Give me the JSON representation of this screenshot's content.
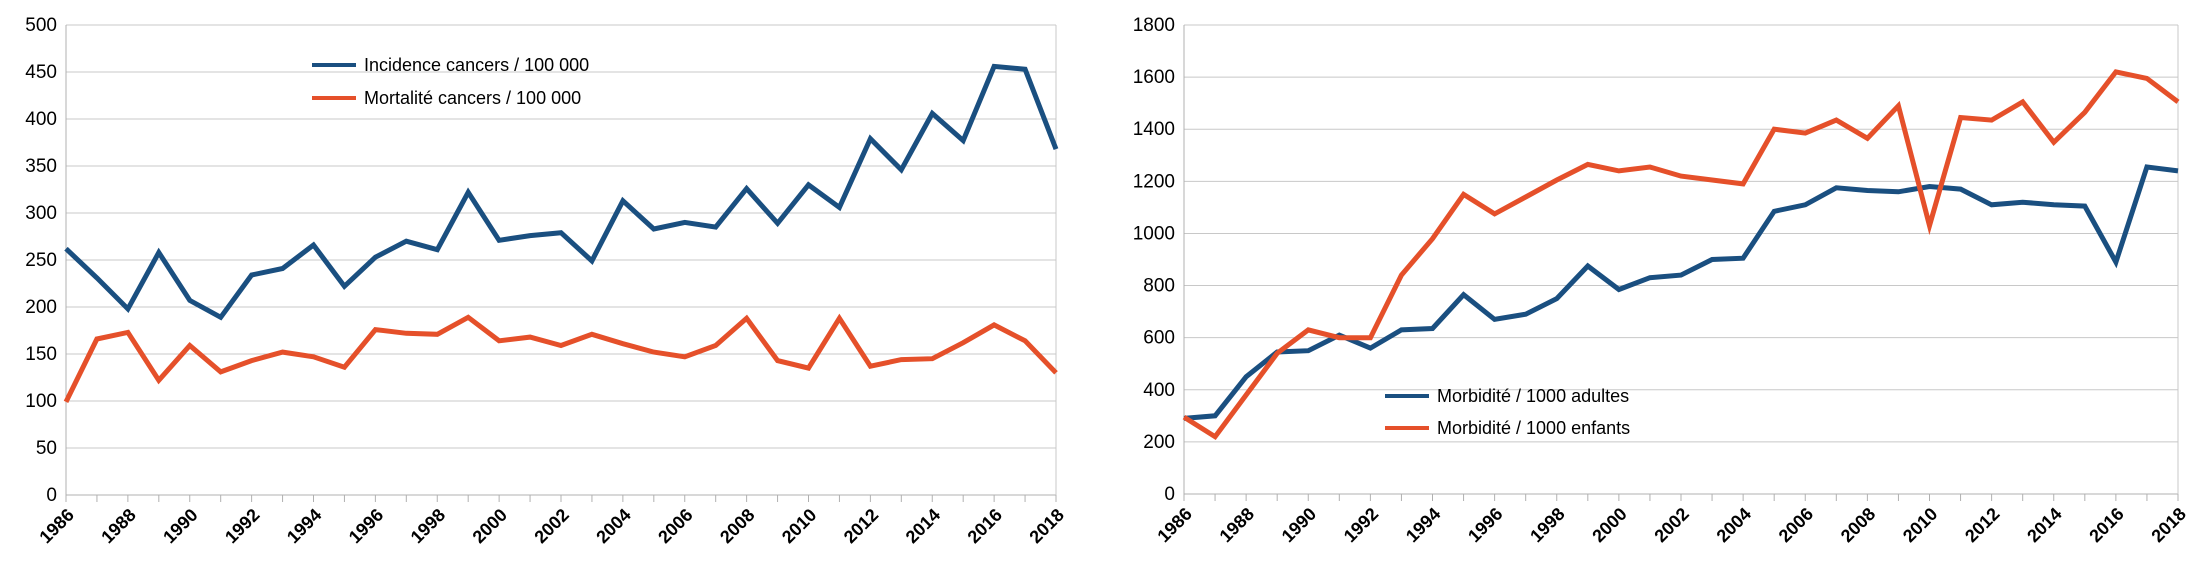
{
  "chart_data": [
    {
      "type": "line",
      "x": [
        1986,
        1987,
        1988,
        1989,
        1990,
        1991,
        1992,
        1993,
        1994,
        1995,
        1996,
        1997,
        1998,
        1999,
        2000,
        2001,
        2002,
        2003,
        2004,
        2005,
        2006,
        2007,
        2008,
        2009,
        2010,
        2011,
        2012,
        2013,
        2014,
        2015,
        2016,
        2017,
        2018
      ],
      "xticks": [
        1986,
        1988,
        1990,
        1992,
        1994,
        1996,
        1998,
        2000,
        2002,
        2004,
        2006,
        2008,
        2010,
        2012,
        2014,
        2016,
        2018
      ],
      "xlim": [
        1986,
        2018
      ],
      "ylim": [
        0,
        500
      ],
      "yticks": [
        0,
        50,
        100,
        150,
        200,
        250,
        300,
        350,
        400,
        450,
        500
      ],
      "grid": true,
      "legend_position": "top-center",
      "series": [
        {
          "name": "Incidence cancers / 100 000",
          "color": "#1a4f80",
          "values": [
            262,
            231,
            198,
            258,
            207,
            189,
            234,
            241,
            266,
            222,
            253,
            270,
            261,
            322,
            271,
            276,
            279,
            249,
            313,
            283,
            290,
            285,
            326,
            289,
            330,
            306,
            379,
            346,
            406,
            377,
            456,
            453,
            368
          ]
        },
        {
          "name": "Mortalité cancers / 100 000",
          "color": "#e5502a",
          "values": [
            99,
            166,
            173,
            122,
            159,
            131,
            143,
            152,
            147,
            136,
            176,
            172,
            171,
            189,
            164,
            168,
            159,
            171,
            161,
            152,
            147,
            159,
            188,
            143,
            135,
            188,
            137,
            144,
            145,
            162,
            181,
            164,
            130
          ]
        }
      ]
    },
    {
      "type": "line",
      "x": [
        1986,
        1987,
        1988,
        1989,
        1990,
        1991,
        1992,
        1993,
        1994,
        1995,
        1996,
        1997,
        1998,
        1999,
        2000,
        2001,
        2002,
        2003,
        2004,
        2005,
        2006,
        2007,
        2008,
        2009,
        2010,
        2011,
        2012,
        2013,
        2014,
        2015,
        2016,
        2017,
        2018
      ],
      "xticks": [
        1986,
        1988,
        1990,
        1992,
        1994,
        1996,
        1998,
        2000,
        2002,
        2004,
        2006,
        2008,
        2010,
        2012,
        2014,
        2016,
        2018
      ],
      "xlim": [
        1986,
        2018
      ],
      "ylim": [
        0,
        1800
      ],
      "yticks": [
        0,
        200,
        400,
        600,
        800,
        1000,
        1200,
        1400,
        1600,
        1800
      ],
      "grid": true,
      "legend_position": "bottom-center",
      "series": [
        {
          "name": "Morbidité  / 1000 adultes",
          "color": "#1a4f80",
          "values": [
            290,
            300,
            450,
            545,
            550,
            610,
            560,
            630,
            635,
            765,
            670,
            690,
            750,
            875,
            785,
            830,
            840,
            900,
            905,
            1085,
            1110,
            1175,
            1165,
            1160,
            1180,
            1170,
            1110,
            1120,
            1110,
            1105,
            890,
            1255,
            1240
          ]
        },
        {
          "name": "Morbidité / 1000 enfants",
          "color": "#e5502a",
          "values": [
            295,
            220,
            380,
            540,
            630,
            600,
            600,
            840,
            980,
            1150,
            1075,
            1140,
            1205,
            1265,
            1240,
            1255,
            1220,
            1205,
            1190,
            1400,
            1385,
            1435,
            1365,
            1490,
            1030,
            1445,
            1435,
            1505,
            1350,
            1465,
            1620,
            1595,
            1505
          ]
        }
      ]
    }
  ]
}
